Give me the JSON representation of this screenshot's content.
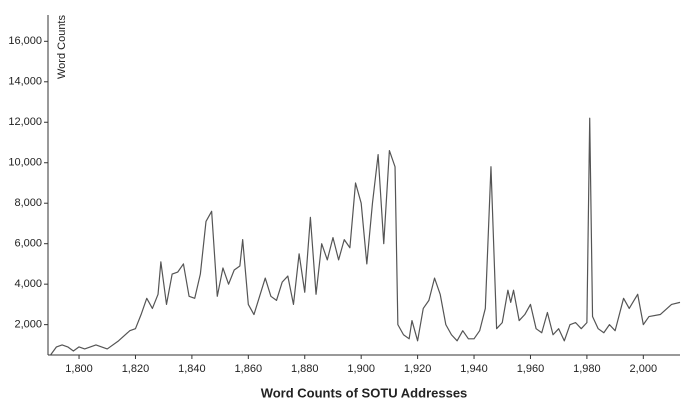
{
  "chart_data": {
    "type": "line",
    "title": "Word Counts of SOTU Addresses",
    "y_label": "Word Counts",
    "x": [
      1790,
      1792,
      1794,
      1796,
      1798,
      1800,
      1802,
      1806,
      1810,
      1814,
      1818,
      1820,
      1822,
      1824,
      1826,
      1828,
      1829,
      1831,
      1833,
      1835,
      1837,
      1839,
      1841,
      1843,
      1845,
      1847,
      1849,
      1851,
      1853,
      1855,
      1857,
      1858,
      1860,
      1862,
      1864,
      1866,
      1868,
      1870,
      1872,
      1874,
      1876,
      1878,
      1880,
      1882,
      1884,
      1886,
      1888,
      1890,
      1892,
      1894,
      1896,
      1898,
      1900,
      1902,
      1904,
      1906,
      1908,
      1910,
      1912,
      1913,
      1915,
      1917,
      1918,
      1920,
      1922,
      1924,
      1926,
      1928,
      1930,
      1932,
      1934,
      1936,
      1938,
      1940,
      1942,
      1944,
      1946,
      1948,
      1950,
      1952,
      1953,
      1954,
      1956,
      1958,
      1960,
      1962,
      1964,
      1966,
      1968,
      1970,
      1972,
      1974,
      1976,
      1978,
      1980,
      1981,
      1982,
      1984,
      1986,
      1988,
      1990,
      1993,
      1995,
      1998,
      2000,
      2002,
      2006,
      2010,
      2013
    ],
    "series": [
      {
        "name": "Word Counts",
        "color": "#555555",
        "values": [
          520,
          900,
          1000,
          900,
          700,
          900,
          800,
          1000,
          800,
          1200,
          1700,
          1800,
          2500,
          3300,
          2800,
          3500,
          5100,
          3000,
          4500,
          4600,
          5000,
          3400,
          3300,
          4500,
          7100,
          7600,
          3400,
          4800,
          4000,
          4700,
          4900,
          6200,
          3000,
          2500,
          3400,
          4300,
          3400,
          3200,
          4100,
          4400,
          3000,
          5500,
          3600,
          7300,
          3500,
          6000,
          5200,
          6300,
          5200,
          6200,
          5800,
          9000,
          8000,
          5000,
          8000,
          10400,
          6000,
          10600,
          9800,
          2000,
          1500,
          1300,
          2200,
          1200,
          2800,
          3200,
          4300,
          3500,
          2000,
          1500,
          1200,
          1700,
          1300,
          1300,
          1700,
          2800,
          9800,
          1800,
          2100,
          3700,
          3100,
          3700,
          2200,
          2500,
          3000,
          1800,
          1600,
          2600,
          1500,
          1800,
          1200,
          2000,
          2100,
          1800,
          2100,
          12200,
          2400,
          1800,
          1600,
          2000,
          1700,
          3300,
          2800,
          3500,
          2000,
          2400,
          2500,
          3000,
          3100
        ]
      }
    ],
    "xlim": [
      1789,
      2013
    ],
    "ylim": [
      500,
      17300
    ],
    "xticks": [
      {
        "value": 1800,
        "label": "1,800"
      },
      {
        "value": 1820,
        "label": "1,820"
      },
      {
        "value": 1840,
        "label": "1,840"
      },
      {
        "value": 1860,
        "label": "1,860"
      },
      {
        "value": 1880,
        "label": "1,880"
      },
      {
        "value": 1900,
        "label": "1,900"
      },
      {
        "value": 1920,
        "label": "1,920"
      },
      {
        "value": 1940,
        "label": "1,940"
      },
      {
        "value": 1960,
        "label": "1,960"
      },
      {
        "value": 1980,
        "label": "1,980"
      },
      {
        "value": 2000,
        "label": "2,000"
      }
    ],
    "yticks": [
      {
        "value": 2000,
        "label": "2,000"
      },
      {
        "value": 4000,
        "label": "4,000"
      },
      {
        "value": 6000,
        "label": "6,000"
      },
      {
        "value": 8000,
        "label": "8,000"
      },
      {
        "value": 10000,
        "label": "10,000"
      },
      {
        "value": 12000,
        "label": "12,000"
      },
      {
        "value": 14000,
        "label": "14,000"
      },
      {
        "value": 16000,
        "label": "16,000"
      }
    ]
  }
}
